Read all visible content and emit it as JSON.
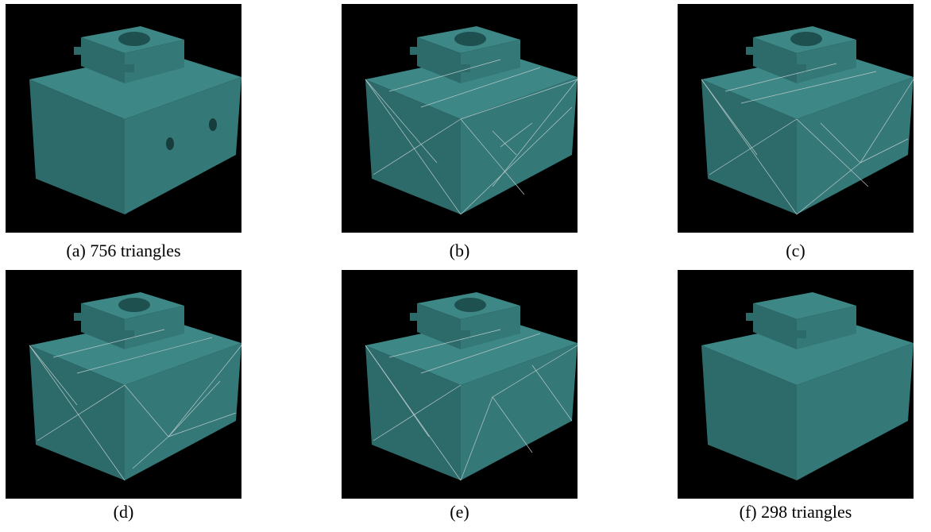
{
  "figure": {
    "panels": [
      {
        "caption": "(a) 756 triangles"
      },
      {
        "caption": "(b)"
      },
      {
        "caption": "(c)"
      },
      {
        "caption": "(d)"
      },
      {
        "caption": "(e)"
      },
      {
        "caption": "(f) 298 triangles"
      }
    ]
  }
}
